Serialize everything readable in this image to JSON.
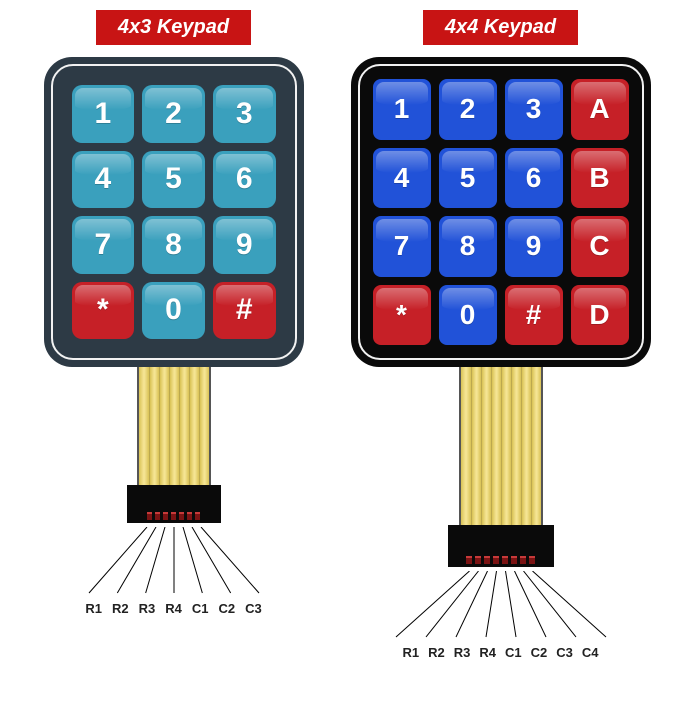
{
  "left": {
    "title": "4x3 Keypad",
    "title_bg": "#c81414",
    "housing_color": "#2d3a45",
    "border_color": "#f2f2f2",
    "keys": [
      {
        "label": "1",
        "bg": "#3aa0bd"
      },
      {
        "label": "2",
        "bg": "#3aa0bd"
      },
      {
        "label": "3",
        "bg": "#3aa0bd"
      },
      {
        "label": "4",
        "bg": "#3aa0bd"
      },
      {
        "label": "5",
        "bg": "#3aa0bd"
      },
      {
        "label": "6",
        "bg": "#3aa0bd"
      },
      {
        "label": "7",
        "bg": "#3aa0bd"
      },
      {
        "label": "8",
        "bg": "#3aa0bd"
      },
      {
        "label": "9",
        "bg": "#3aa0bd"
      },
      {
        "label": "*",
        "bg": "#c62027"
      },
      {
        "label": "0",
        "bg": "#3aa0bd"
      },
      {
        "label": "#",
        "bg": "#c62027"
      }
    ],
    "pin_count": 7,
    "pin_labels": [
      "R1",
      "R2",
      "R3",
      "R4",
      "C1",
      "C2",
      "C3"
    ]
  },
  "right": {
    "title": "4x4 Keypad",
    "title_bg": "#c81414",
    "housing_color": "#0a0a0a",
    "border_color": "#f2f2f2",
    "keys": [
      {
        "label": "1",
        "bg": "#2152d8"
      },
      {
        "label": "2",
        "bg": "#2152d8"
      },
      {
        "label": "3",
        "bg": "#2152d8"
      },
      {
        "label": "A",
        "bg": "#c62027"
      },
      {
        "label": "4",
        "bg": "#2152d8"
      },
      {
        "label": "5",
        "bg": "#2152d8"
      },
      {
        "label": "6",
        "bg": "#2152d8"
      },
      {
        "label": "B",
        "bg": "#c62027"
      },
      {
        "label": "7",
        "bg": "#2152d8"
      },
      {
        "label": "8",
        "bg": "#2152d8"
      },
      {
        "label": "9",
        "bg": "#2152d8"
      },
      {
        "label": "C",
        "bg": "#c62027"
      },
      {
        "label": "*",
        "bg": "#c62027"
      },
      {
        "label": "0",
        "bg": "#2152d8"
      },
      {
        "label": "#",
        "bg": "#c62027"
      },
      {
        "label": "D",
        "bg": "#c62027"
      }
    ],
    "pin_count": 8,
    "pin_labels": [
      "R1",
      "R2",
      "R3",
      "R4",
      "C1",
      "C2",
      "C3",
      "C4"
    ]
  },
  "style": {
    "key_text_color": "#ffffff",
    "cable_color": "#e8d66b",
    "connector_color": "#0a0a0a",
    "pin_color": "#7a1313",
    "label_color": "#222222",
    "background": "#ffffff"
  }
}
